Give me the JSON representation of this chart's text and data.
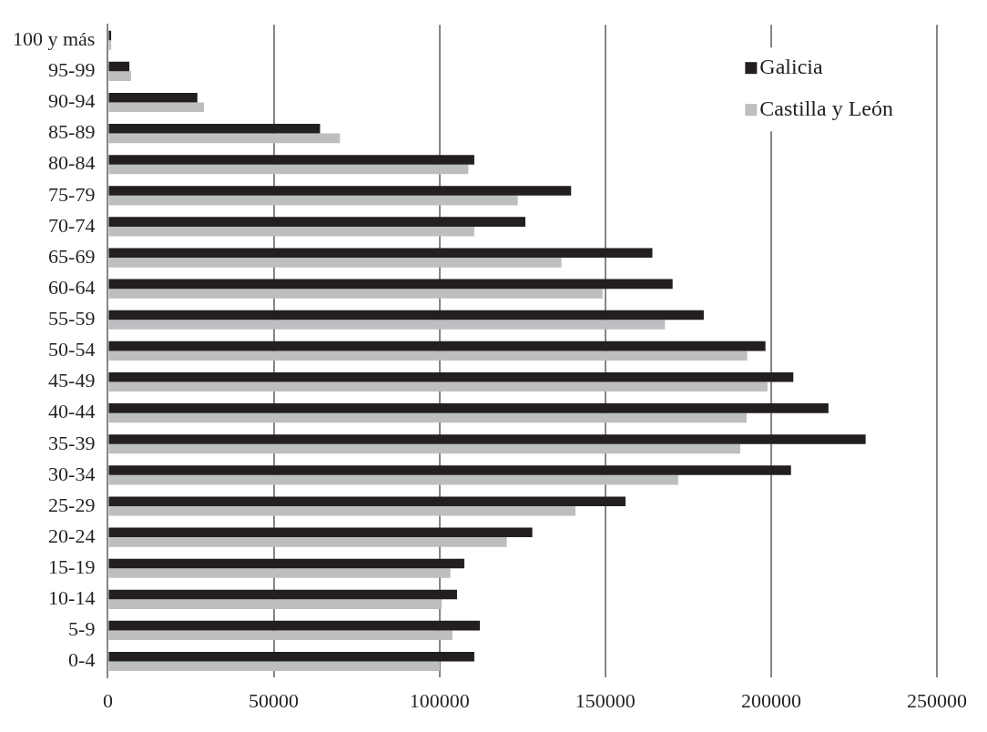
{
  "chart_data": {
    "type": "bar",
    "orientation": "horizontal",
    "categories": [
      "100 y más",
      "95-99",
      "90-94",
      "85-89",
      "80-84",
      "75-79",
      "70-74",
      "65-69",
      "60-64",
      "55-59",
      "50-54",
      "45-49",
      "40-44",
      "35-39",
      "30-34",
      "25-29",
      "20-24",
      "15-19",
      "10-14",
      "5-9",
      "0-4"
    ],
    "series": [
      {
        "name": "Galicia",
        "color": "#231f20",
        "values": [
          1000,
          6500,
          27000,
          64000,
          110500,
          139700,
          125900,
          164200,
          170300,
          179700,
          198300,
          206700,
          217300,
          228500,
          206000,
          156100,
          128000,
          107500,
          105300,
          112200,
          110500
        ]
      },
      {
        "name": "Castilla y León",
        "color": "#bcbec0",
        "values": [
          1000,
          7000,
          29000,
          70000,
          108700,
          123600,
          110500,
          136800,
          149200,
          168000,
          192800,
          198900,
          192600,
          190700,
          172000,
          141000,
          120300,
          103300,
          100700,
          103900,
          100100
        ]
      }
    ],
    "xlim": [
      0,
      250000
    ],
    "xticks": [
      0,
      50000,
      100000,
      150000,
      200000,
      250000
    ],
    "grid": "x",
    "legend": "top right"
  }
}
